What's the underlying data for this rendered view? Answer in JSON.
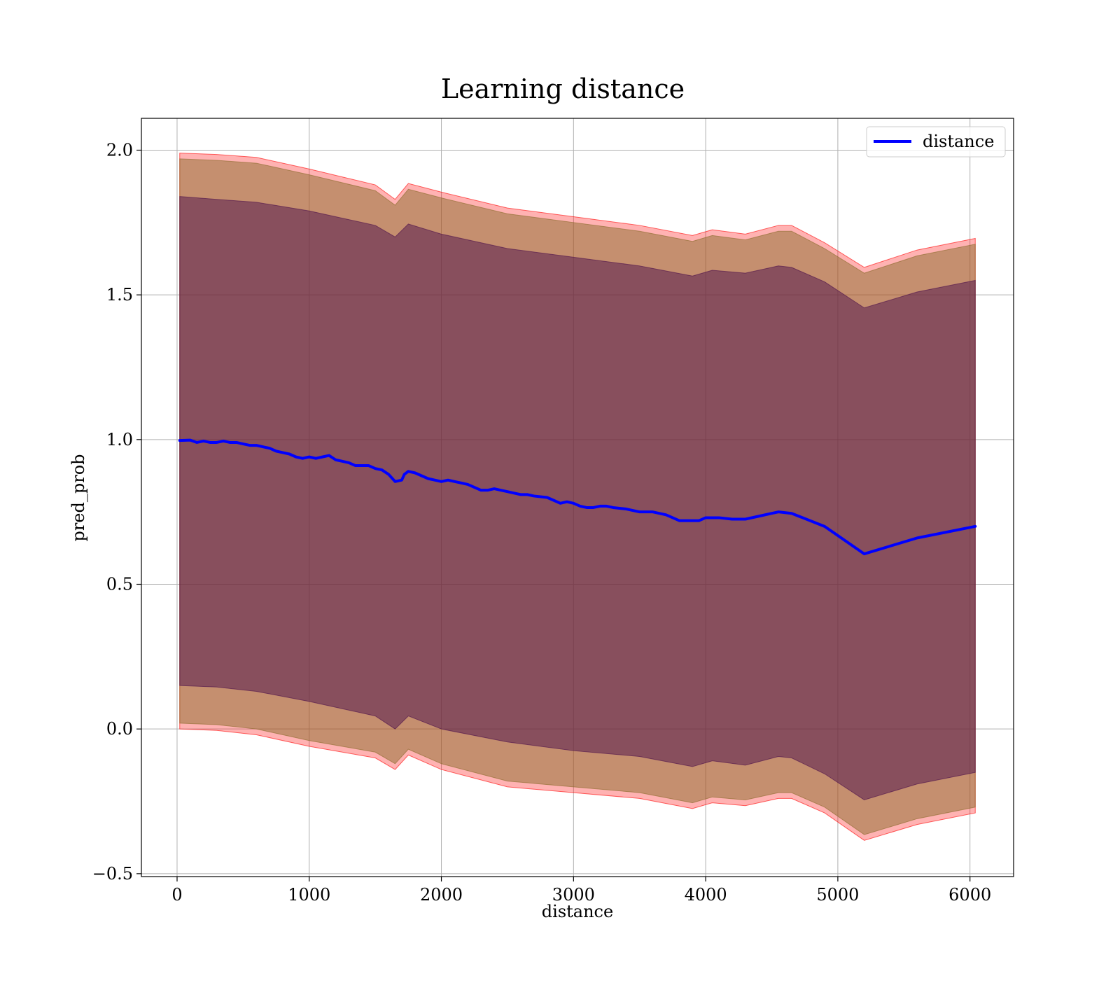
{
  "chart_data": {
    "type": "line",
    "title": "Learning distance",
    "xlabel": "distance",
    "ylabel": "pred_prob",
    "xlim": [
      -270,
      6330
    ],
    "ylim": [
      -0.51,
      2.11
    ],
    "x_ticks": [
      0,
      1000,
      2000,
      3000,
      4000,
      5000,
      6000
    ],
    "x_tick_labels": [
      "0",
      "1000",
      "2000",
      "3000",
      "4000",
      "5000",
      "6000"
    ],
    "y_ticks": [
      -0.5,
      0.0,
      0.5,
      1.0,
      1.5,
      2.0
    ],
    "y_tick_labels": [
      "−0.5",
      "0.0",
      "0.5",
      "1.0",
      "1.5",
      "2.0"
    ],
    "grid": true,
    "legend": {
      "position": "top-right",
      "entries": [
        "distance"
      ]
    },
    "colors": {
      "line": "#0000ff",
      "outer_band": "#ff0000",
      "middle_band": "#8b6b2b",
      "inner_band": "#4b0f4b"
    },
    "series": [
      {
        "name": "distance",
        "x": [
          20,
          100,
          150,
          200,
          250,
          300,
          350,
          400,
          450,
          500,
          550,
          600,
          650,
          700,
          750,
          800,
          850,
          900,
          950,
          1000,
          1050,
          1100,
          1150,
          1200,
          1250,
          1300,
          1350,
          1400,
          1450,
          1500,
          1550,
          1600,
          1650,
          1700,
          1720,
          1750,
          1800,
          1850,
          1900,
          1950,
          2000,
          2050,
          2100,
          2150,
          2200,
          2250,
          2300,
          2350,
          2400,
          2450,
          2500,
          2550,
          2600,
          2650,
          2700,
          2800,
          2850,
          2900,
          2950,
          3000,
          3050,
          3100,
          3150,
          3200,
          3250,
          3300,
          3400,
          3500,
          3600,
          3700,
          3800,
          3850,
          3900,
          3950,
          4000,
          4100,
          4200,
          4300,
          4400,
          4500,
          4550,
          4650,
          4900,
          5200,
          5600,
          6040
        ],
        "y": [
          0.997,
          0.998,
          0.99,
          0.995,
          0.99,
          0.99,
          0.995,
          0.99,
          0.99,
          0.985,
          0.98,
          0.98,
          0.975,
          0.97,
          0.96,
          0.955,
          0.95,
          0.94,
          0.935,
          0.94,
          0.935,
          0.94,
          0.945,
          0.93,
          0.925,
          0.92,
          0.91,
          0.91,
          0.91,
          0.9,
          0.895,
          0.88,
          0.855,
          0.86,
          0.88,
          0.89,
          0.885,
          0.875,
          0.865,
          0.86,
          0.855,
          0.86,
          0.855,
          0.85,
          0.845,
          0.835,
          0.825,
          0.825,
          0.83,
          0.825,
          0.82,
          0.815,
          0.81,
          0.81,
          0.805,
          0.8,
          0.79,
          0.78,
          0.785,
          0.78,
          0.77,
          0.765,
          0.765,
          0.77,
          0.77,
          0.765,
          0.76,
          0.75,
          0.75,
          0.74,
          0.72,
          0.72,
          0.72,
          0.72,
          0.73,
          0.73,
          0.725,
          0.725,
          0.735,
          0.745,
          0.75,
          0.745,
          0.7,
          0.605,
          0.66,
          0.7
        ]
      }
    ],
    "bands": [
      {
        "x": [
          20,
          300,
          600,
          1000,
          1500,
          1650,
          1750,
          2000,
          2500,
          3000,
          3500,
          3900,
          4050,
          4300,
          4550,
          4650,
          4900,
          5200,
          5600,
          6040
        ],
        "upper": [
          1.99,
          1.985,
          1.975,
          1.935,
          1.88,
          1.83,
          1.885,
          1.855,
          1.8,
          1.77,
          1.74,
          1.705,
          1.725,
          1.71,
          1.74,
          1.74,
          1.68,
          1.595,
          1.655,
          1.695
        ],
        "lower": [
          0.0,
          -0.005,
          -0.02,
          -0.06,
          -0.1,
          -0.14,
          -0.09,
          -0.14,
          -0.2,
          -0.22,
          -0.24,
          -0.275,
          -0.255,
          -0.265,
          -0.24,
          -0.24,
          -0.29,
          -0.385,
          -0.33,
          -0.29
        ]
      },
      {
        "x": [
          20,
          300,
          600,
          1000,
          1500,
          1650,
          1750,
          2000,
          2500,
          3000,
          3500,
          3900,
          4050,
          4300,
          4550,
          4650,
          4900,
          5200,
          5600,
          6040
        ],
        "upper": [
          1.97,
          1.965,
          1.955,
          1.915,
          1.86,
          1.81,
          1.865,
          1.835,
          1.78,
          1.75,
          1.72,
          1.685,
          1.705,
          1.69,
          1.72,
          1.72,
          1.66,
          1.575,
          1.635,
          1.675
        ],
        "lower": [
          0.02,
          0.015,
          0.0,
          -0.04,
          -0.08,
          -0.12,
          -0.07,
          -0.12,
          -0.18,
          -0.2,
          -0.22,
          -0.255,
          -0.235,
          -0.245,
          -0.22,
          -0.22,
          -0.27,
          -0.365,
          -0.31,
          -0.27
        ]
      },
      {
        "x": [
          20,
          300,
          600,
          1000,
          1500,
          1650,
          1750,
          2000,
          2500,
          3000,
          3500,
          3900,
          4050,
          4300,
          4550,
          4650,
          4900,
          5200,
          5600,
          6040
        ],
        "upper": [
          1.84,
          1.83,
          1.82,
          1.79,
          1.74,
          1.7,
          1.745,
          1.71,
          1.66,
          1.63,
          1.6,
          1.565,
          1.585,
          1.575,
          1.6,
          1.595,
          1.545,
          1.455,
          1.51,
          1.55
        ],
        "lower": [
          0.15,
          0.145,
          0.13,
          0.095,
          0.045,
          0.0,
          0.045,
          0.0,
          -0.045,
          -0.075,
          -0.095,
          -0.13,
          -0.11,
          -0.125,
          -0.095,
          -0.1,
          -0.155,
          -0.245,
          -0.19,
          -0.15
        ]
      }
    ]
  }
}
